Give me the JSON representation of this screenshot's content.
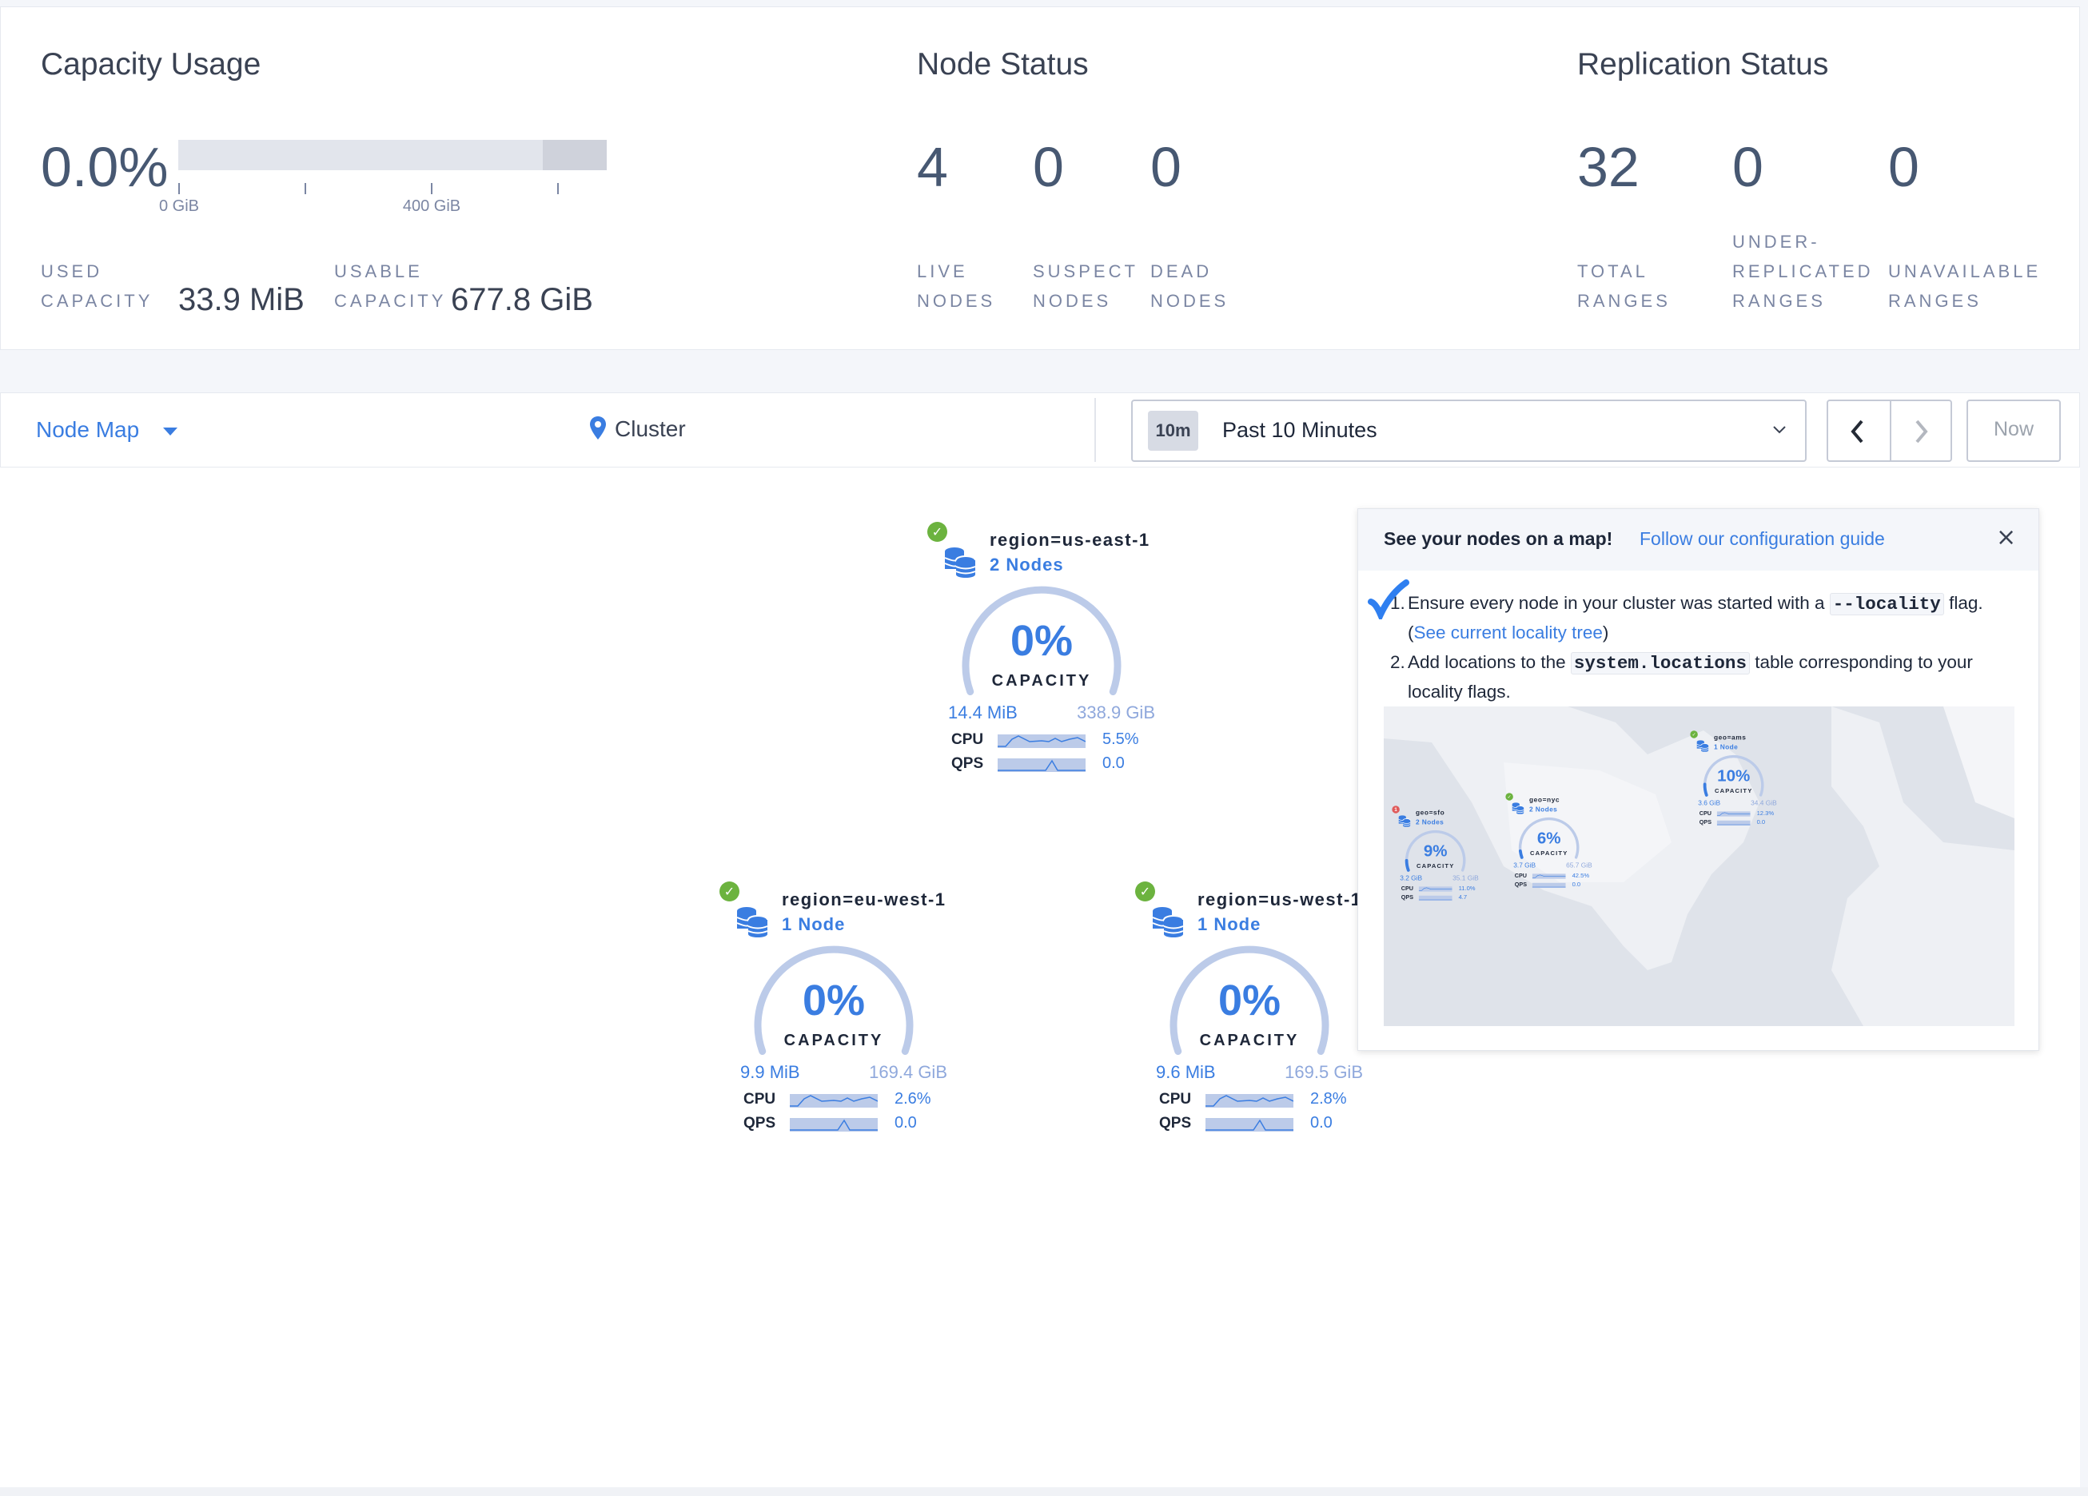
{
  "capacity": {
    "title": "Capacity Usage",
    "percent": "0.0%",
    "used_fraction": 0.0,
    "tick_labels": [
      "0 GiB",
      "400 GiB"
    ],
    "used_label_1": "USED",
    "used_label_2": "CAPACITY",
    "used_value": "33.9 MiB",
    "usable_label_1": "USABLE",
    "usable_label_2": "CAPACITY",
    "usable_value": "677.8 GiB"
  },
  "node_status": {
    "title": "Node Status",
    "items": [
      {
        "value": "4",
        "label_1": "LIVE",
        "label_2": "NODES"
      },
      {
        "value": "0",
        "label_1": "SUSPECT",
        "label_2": "NODES"
      },
      {
        "value": "0",
        "label_1": "DEAD",
        "label_2": "NODES"
      }
    ]
  },
  "replication_status": {
    "title": "Replication Status",
    "items": [
      {
        "value": "32",
        "label_0": "",
        "label_1": "TOTAL",
        "label_2": "RANGES"
      },
      {
        "value": "0",
        "label_0": "UNDER-",
        "label_1": "REPLICATED",
        "label_2": "RANGES"
      },
      {
        "value": "0",
        "label_0": "",
        "label_1": "UNAVAILABLE",
        "label_2": "RANGES"
      }
    ]
  },
  "toolbar": {
    "view_select": "Node Map",
    "breadcrumb": "Cluster",
    "time_badge": "10m",
    "time_range": "Past 10 Minutes",
    "now_button": "Now"
  },
  "colors": {
    "accent": "#3a7de1",
    "healthy": "#6cb33f",
    "alert": "#e05a5a",
    "gauge_track": "#bccbe9"
  },
  "nodes": [
    {
      "region": "region=us-east-1",
      "count": "2 Nodes",
      "percent": "0%",
      "capacity_label": "CAPACITY",
      "used": "14.4 MiB",
      "total": "338.9 GiB",
      "cpu_label": "CPU",
      "cpu": "5.5%",
      "qps_label": "QPS",
      "qps": "0.0",
      "status": "healthy",
      "fill": 0
    },
    {
      "region": "region=eu-west-1",
      "count": "1 Node",
      "percent": "0%",
      "capacity_label": "CAPACITY",
      "used": "9.9 MiB",
      "total": "169.4 GiB",
      "cpu_label": "CPU",
      "cpu": "2.6%",
      "qps_label": "QPS",
      "qps": "0.0",
      "status": "healthy",
      "fill": 0
    },
    {
      "region": "region=us-west-1",
      "count": "1 Node",
      "percent": "0%",
      "capacity_label": "CAPACITY",
      "used": "9.6 MiB",
      "total": "169.5 GiB",
      "cpu_label": "CPU",
      "cpu": "2.8%",
      "qps_label": "QPS",
      "qps": "0.0",
      "status": "healthy",
      "fill": 0
    }
  ],
  "popup": {
    "heading": "See your nodes on a map!",
    "guide_link": "Follow our configuration guide",
    "step1_prefix": "Ensure every node in your cluster was started with a",
    "step1_code": "--locality",
    "step1_mid": "flag. (",
    "step1_link": "See current locality tree",
    "step1_suffix": ")",
    "step2_prefix": "Add locations to the",
    "step2_code": "system.locations",
    "step2_suffix": "table corresponding to your locality flags.",
    "map_nodes": [
      {
        "region": "geo=sfo",
        "count": "2 Nodes",
        "percent": "9%",
        "capacity_label": "CAPACITY",
        "used": "3.2 GiB",
        "total": "35.1 GiB",
        "cpu_label": "CPU",
        "cpu": "11.0%",
        "qps_label": "QPS",
        "qps": "4.7",
        "status": "alert",
        "alert_count": "1",
        "fill": 0.09
      },
      {
        "region": "geo=nyc",
        "count": "2 Nodes",
        "percent": "6%",
        "capacity_label": "CAPACITY",
        "used": "3.7 GiB",
        "total": "65.7 GiB",
        "cpu_label": "CPU",
        "cpu": "42.5%",
        "qps_label": "QPS",
        "qps": "0.0",
        "status": "healthy",
        "fill": 0.06
      },
      {
        "region": "geo=ams",
        "count": "1 Node",
        "percent": "10%",
        "capacity_label": "CAPACITY",
        "used": "3.6 GiB",
        "total": "34.4 GiB",
        "cpu_label": "CPU",
        "cpu": "12.3%",
        "qps_label": "QPS",
        "qps": "0.0",
        "status": "healthy",
        "fill": 0.1
      }
    ]
  }
}
